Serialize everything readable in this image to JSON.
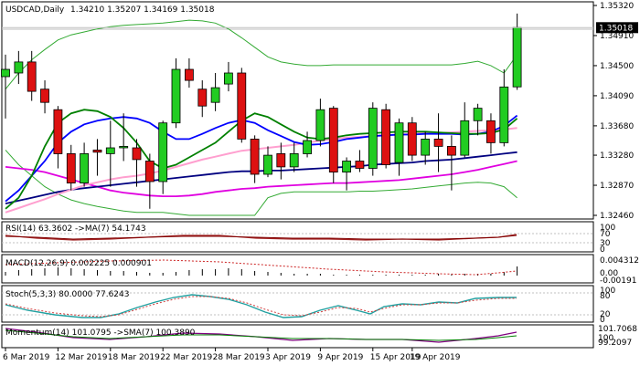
{
  "header": {
    "symbol_label": "USDCAD,Daily",
    "ohlc_label": "1.34210 1.35207 1.34169 1.35018"
  },
  "price_panel": {
    "y_ticks": [
      "1.35320",
      "1.34910",
      "1.34500",
      "1.34090",
      "1.33680",
      "1.33280",
      "1.32870",
      "1.32460"
    ],
    "ylim": [
      1.3246,
      1.3532
    ],
    "current_price_label": "1.35018",
    "current_price": 1.35018
  },
  "indicators": {
    "rsi": {
      "label": "RSI(14) 63.3602  ->MA(7) 54.1743",
      "ticks": [
        "100",
        "70",
        "30",
        "0"
      ]
    },
    "macd": {
      "label": "MACD(12,26,9) 0.002225 0.000901",
      "ticks": [
        "0.004312",
        "0.00",
        "-0.00191"
      ]
    },
    "stoch": {
      "label": "Stoch(5,3,3) 80.0000 77.6243",
      "ticks": [
        "100",
        "80",
        "20",
        "0"
      ]
    },
    "momentum": {
      "label": "Momentum(14) 101.0795  ->SMA(7) 100.3890",
      "ticks": [
        "101.7068",
        "100",
        "99.2097"
      ]
    }
  },
  "x_axis": {
    "labels": [
      "6 Mar 2019",
      "12 Mar 2019",
      "18 Mar 2019",
      "22 Mar 2019",
      "28 Mar 2019",
      "3 Apr 2019",
      "9 Apr 2019",
      "15 Apr 2019",
      "19 Apr 2019"
    ]
  },
  "colors": {
    "bull": "#22cc22",
    "bear": "#dd1111",
    "ma_navy": "#000080",
    "ma_blue": "#0000ff",
    "ma_green": "#008000",
    "ma_magenta": "#e000e0",
    "ma_pink": "#ff9fcf",
    "bollinger": "#33aa33",
    "stoch_main": "#20a0a0",
    "stoch_signal": "#d04040",
    "rsi_line": "#a02020",
    "macd_signal": "#cc2222",
    "momentum_main": "#800080",
    "momentum_signal": "#008000"
  },
  "chart_data": {
    "type": "candlestick",
    "symbol": "USDCAD",
    "timeframe": "Daily",
    "candles": [
      {
        "o": 1.3435,
        "h": 1.3465,
        "l": 1.3378,
        "c": 1.3445
      },
      {
        "o": 1.344,
        "h": 1.347,
        "l": 1.3425,
        "c": 1.3455
      },
      {
        "o": 1.3455,
        "h": 1.347,
        "l": 1.3402,
        "c": 1.3415
      },
      {
        "o": 1.3418,
        "h": 1.343,
        "l": 1.3385,
        "c": 1.34
      },
      {
        "o": 1.339,
        "h": 1.3395,
        "l": 1.331,
        "c": 1.333
      },
      {
        "o": 1.333,
        "h": 1.3342,
        "l": 1.328,
        "c": 1.329
      },
      {
        "o": 1.329,
        "h": 1.3345,
        "l": 1.3285,
        "c": 1.333
      },
      {
        "o": 1.3335,
        "h": 1.335,
        "l": 1.33,
        "c": 1.3332
      },
      {
        "o": 1.333,
        "h": 1.3375,
        "l": 1.3285,
        "c": 1.3338
      },
      {
        "o": 1.3338,
        "h": 1.3385,
        "l": 1.332,
        "c": 1.334
      },
      {
        "o": 1.3338,
        "h": 1.335,
        "l": 1.3285,
        "c": 1.3322
      },
      {
        "o": 1.332,
        "h": 1.333,
        "l": 1.3255,
        "c": 1.3292
      },
      {
        "o": 1.3292,
        "h": 1.3375,
        "l": 1.3275,
        "c": 1.3372
      },
      {
        "o": 1.3372,
        "h": 1.346,
        "l": 1.3365,
        "c": 1.3445
      },
      {
        "o": 1.3445,
        "h": 1.346,
        "l": 1.342,
        "c": 1.343
      },
      {
        "o": 1.3418,
        "h": 1.343,
        "l": 1.338,
        "c": 1.3395
      },
      {
        "o": 1.34,
        "h": 1.344,
        "l": 1.3388,
        "c": 1.342
      },
      {
        "o": 1.3425,
        "h": 1.3455,
        "l": 1.3415,
        "c": 1.344
      },
      {
        "o": 1.344,
        "h": 1.3447,
        "l": 1.3345,
        "c": 1.335
      },
      {
        "o": 1.335,
        "h": 1.3355,
        "l": 1.329,
        "c": 1.3302
      },
      {
        "o": 1.3302,
        "h": 1.334,
        "l": 1.3298,
        "c": 1.3328
      },
      {
        "o": 1.333,
        "h": 1.3345,
        "l": 1.3295,
        "c": 1.3312
      },
      {
        "o": 1.3312,
        "h": 1.3345,
        "l": 1.3305,
        "c": 1.333
      },
      {
        "o": 1.333,
        "h": 1.336,
        "l": 1.3325,
        "c": 1.3348
      },
      {
        "o": 1.3348,
        "h": 1.3405,
        "l": 1.334,
        "c": 1.339
      },
      {
        "o": 1.3392,
        "h": 1.3395,
        "l": 1.329,
        "c": 1.3305
      },
      {
        "o": 1.3305,
        "h": 1.3325,
        "l": 1.328,
        "c": 1.332
      },
      {
        "o": 1.332,
        "h": 1.3335,
        "l": 1.3305,
        "c": 1.331
      },
      {
        "o": 1.331,
        "h": 1.34,
        "l": 1.33,
        "c": 1.3392
      },
      {
        "o": 1.339,
        "h": 1.3398,
        "l": 1.331,
        "c": 1.3315
      },
      {
        "o": 1.3318,
        "h": 1.3378,
        "l": 1.33,
        "c": 1.3372
      },
      {
        "o": 1.3372,
        "h": 1.338,
        "l": 1.332,
        "c": 1.3328
      },
      {
        "o": 1.3328,
        "h": 1.336,
        "l": 1.3315,
        "c": 1.335
      },
      {
        "o": 1.335,
        "h": 1.3385,
        "l": 1.3305,
        "c": 1.334
      },
      {
        "o": 1.334,
        "h": 1.3355,
        "l": 1.328,
        "c": 1.3328
      },
      {
        "o": 1.3328,
        "h": 1.34,
        "l": 1.3325,
        "c": 1.3375
      },
      {
        "o": 1.3375,
        "h": 1.3398,
        "l": 1.3355,
        "c": 1.3392
      },
      {
        "o": 1.3375,
        "h": 1.3385,
        "l": 1.333,
        "c": 1.3345
      },
      {
        "o": 1.3345,
        "h": 1.3445,
        "l": 1.334,
        "c": 1.3421
      },
      {
        "o": 1.3421,
        "h": 1.3521,
        "l": 1.3417,
        "c": 1.3502
      }
    ],
    "moving_averages": [
      {
        "name": "MA slow (magenta)",
        "color": "#e000e0",
        "values": [
          1.3312,
          1.331,
          1.3308,
          1.3305,
          1.33,
          1.3295,
          1.329,
          1.3285,
          1.328,
          1.3277,
          1.3275,
          1.3273,
          1.3272,
          1.3272,
          1.3273,
          1.3275,
          1.3278,
          1.328,
          1.3282,
          1.3283,
          1.3285,
          1.3286,
          1.3287,
          1.3288,
          1.3289,
          1.329,
          1.329,
          1.3291,
          1.3292,
          1.3293,
          1.3294,
          1.3296,
          1.3298,
          1.33,
          1.3302,
          1.3305,
          1.3308,
          1.3312,
          1.3316,
          1.332
        ]
      },
      {
        "name": "MA navy",
        "color": "#000080",
        "values": [
          1.3262,
          1.3266,
          1.327,
          1.3274,
          1.3278,
          1.3281,
          1.3283,
          1.3285,
          1.3287,
          1.3289,
          1.3291,
          1.3293,
          1.3295,
          1.3297,
          1.3299,
          1.3301,
          1.3303,
          1.3305,
          1.3306,
          1.3306,
          1.3307,
          1.3307,
          1.3308,
          1.3309,
          1.331,
          1.3311,
          1.3312,
          1.3313,
          1.3315,
          1.3316,
          1.3317,
          1.3318,
          1.332,
          1.3321,
          1.3322,
          1.3324,
          1.3326,
          1.3328,
          1.333,
          1.3332
        ]
      },
      {
        "name": "MA pink",
        "color": "#ff9fcf",
        "values": [
          1.325,
          1.3256,
          1.3262,
          1.3268,
          1.3275,
          1.3281,
          1.3287,
          1.3291,
          1.3295,
          1.3298,
          1.33,
          1.3303,
          1.3307,
          1.3312,
          1.3317,
          1.3322,
          1.3326,
          1.333,
          1.3334,
          1.3336,
          1.3338,
          1.334,
          1.3342,
          1.3345,
          1.3348,
          1.335,
          1.3352,
          1.3353,
          1.3354,
          1.3355,
          1.3356,
          1.3357,
          1.3358,
          1.3358,
          1.3359,
          1.336,
          1.3361,
          1.3362,
          1.3363,
          1.3365
        ]
      },
      {
        "name": "MA blue",
        "color": "#0000ff",
        "values": [
          1.3265,
          1.328,
          1.33,
          1.332,
          1.3345,
          1.336,
          1.337,
          1.3375,
          1.3378,
          1.338,
          1.3378,
          1.3372,
          1.336,
          1.335,
          1.335,
          1.3357,
          1.3365,
          1.3372,
          1.3376,
          1.3372,
          1.3362,
          1.3354,
          1.3346,
          1.3342,
          1.3343,
          1.3346,
          1.335,
          1.3352,
          1.3354,
          1.3355,
          1.3356,
          1.3356,
          1.3357,
          1.3357,
          1.3357,
          1.3356,
          1.3357,
          1.336,
          1.3368,
          1.3382
        ]
      },
      {
        "name": "MA green",
        "color": "#008000",
        "values": [
          1.3255,
          1.327,
          1.33,
          1.334,
          1.3372,
          1.3385,
          1.339,
          1.3388,
          1.338,
          1.3365,
          1.3345,
          1.332,
          1.331,
          1.3315,
          1.3325,
          1.3335,
          1.3345,
          1.336,
          1.3375,
          1.3385,
          1.338,
          1.337,
          1.336,
          1.3352,
          1.335,
          1.3352,
          1.3355,
          1.3357,
          1.3358,
          1.3359,
          1.336,
          1.336,
          1.336,
          1.3359,
          1.3358,
          1.3357,
          1.3357,
          1.3358,
          1.3363,
          1.3378
        ]
      }
    ],
    "bollinger": {
      "upper": [
        1.3418,
        1.344,
        1.3458,
        1.3472,
        1.3485,
        1.3492,
        1.3496,
        1.35,
        1.3503,
        1.3505,
        1.3506,
        1.3507,
        1.3508,
        1.351,
        1.3512,
        1.3511,
        1.3508,
        1.35,
        1.3488,
        1.3475,
        1.3462,
        1.3455,
        1.3452,
        1.345,
        1.345,
        1.3451,
        1.3451,
        1.3451,
        1.3451,
        1.3451,
        1.3451,
        1.3451,
        1.3451,
        1.3451,
        1.3451,
        1.3453,
        1.3456,
        1.345,
        1.344,
        1.3465
      ],
      "lower": [
        1.3335,
        1.3315,
        1.33,
        1.3285,
        1.3275,
        1.3267,
        1.3262,
        1.3258,
        1.3255,
        1.3252,
        1.325,
        1.325,
        1.325,
        1.3248,
        1.3246,
        1.3246,
        1.3246,
        1.3246,
        1.3246,
        1.3246,
        1.327,
        1.3276,
        1.3278,
        1.3278,
        1.3278,
        1.3278,
        1.3278,
        1.3279,
        1.3279,
        1.328,
        1.3281,
        1.3282,
        1.3284,
        1.3286,
        1.3288,
        1.329,
        1.3291,
        1.329,
        1.3285,
        1.327
      ]
    }
  }
}
